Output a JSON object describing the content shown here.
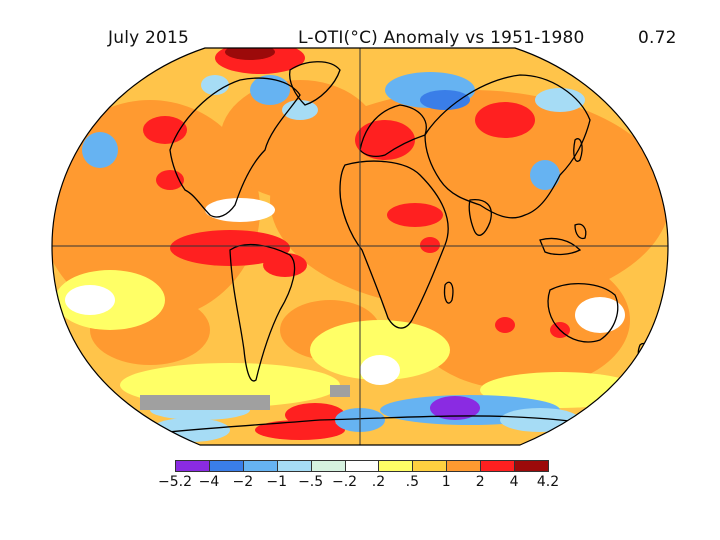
{
  "header": {
    "date": "July 2015",
    "title": "L-OTI(°C) Anomaly vs 1951-1980",
    "global_mean": "0.72"
  },
  "colorbar": {
    "colors": [
      "#8a2be2",
      "#3a7ee8",
      "#66b3f2",
      "#a6dcf5",
      "#d6f2e0",
      "#ffffff",
      "#ffff66",
      "#ffd040",
      "#ff9a30",
      "#ff2020",
      "#9c0a0a"
    ],
    "ticks": [
      "-5.2",
      "-4",
      "-2",
      "-1",
      "-.5",
      "-.2",
      ".2",
      ".5",
      "1",
      "2",
      "4",
      "4.2"
    ]
  },
  "map": {
    "projection": "Robinson",
    "colors": {
      "ocean_base": "#ffc44a",
      "warm": "#ff9a30",
      "hot": "#ff2020",
      "very_hot": "#9c0a0a",
      "mild": "#ffff66",
      "neutral": "#ffffff",
      "cool": "#a6dcf5",
      "cold": "#66b3f2",
      "colder": "#3a7ee8",
      "coldest": "#8a2be2",
      "no_data": "#a0a0a0",
      "coastline": "#000000"
    }
  }
}
